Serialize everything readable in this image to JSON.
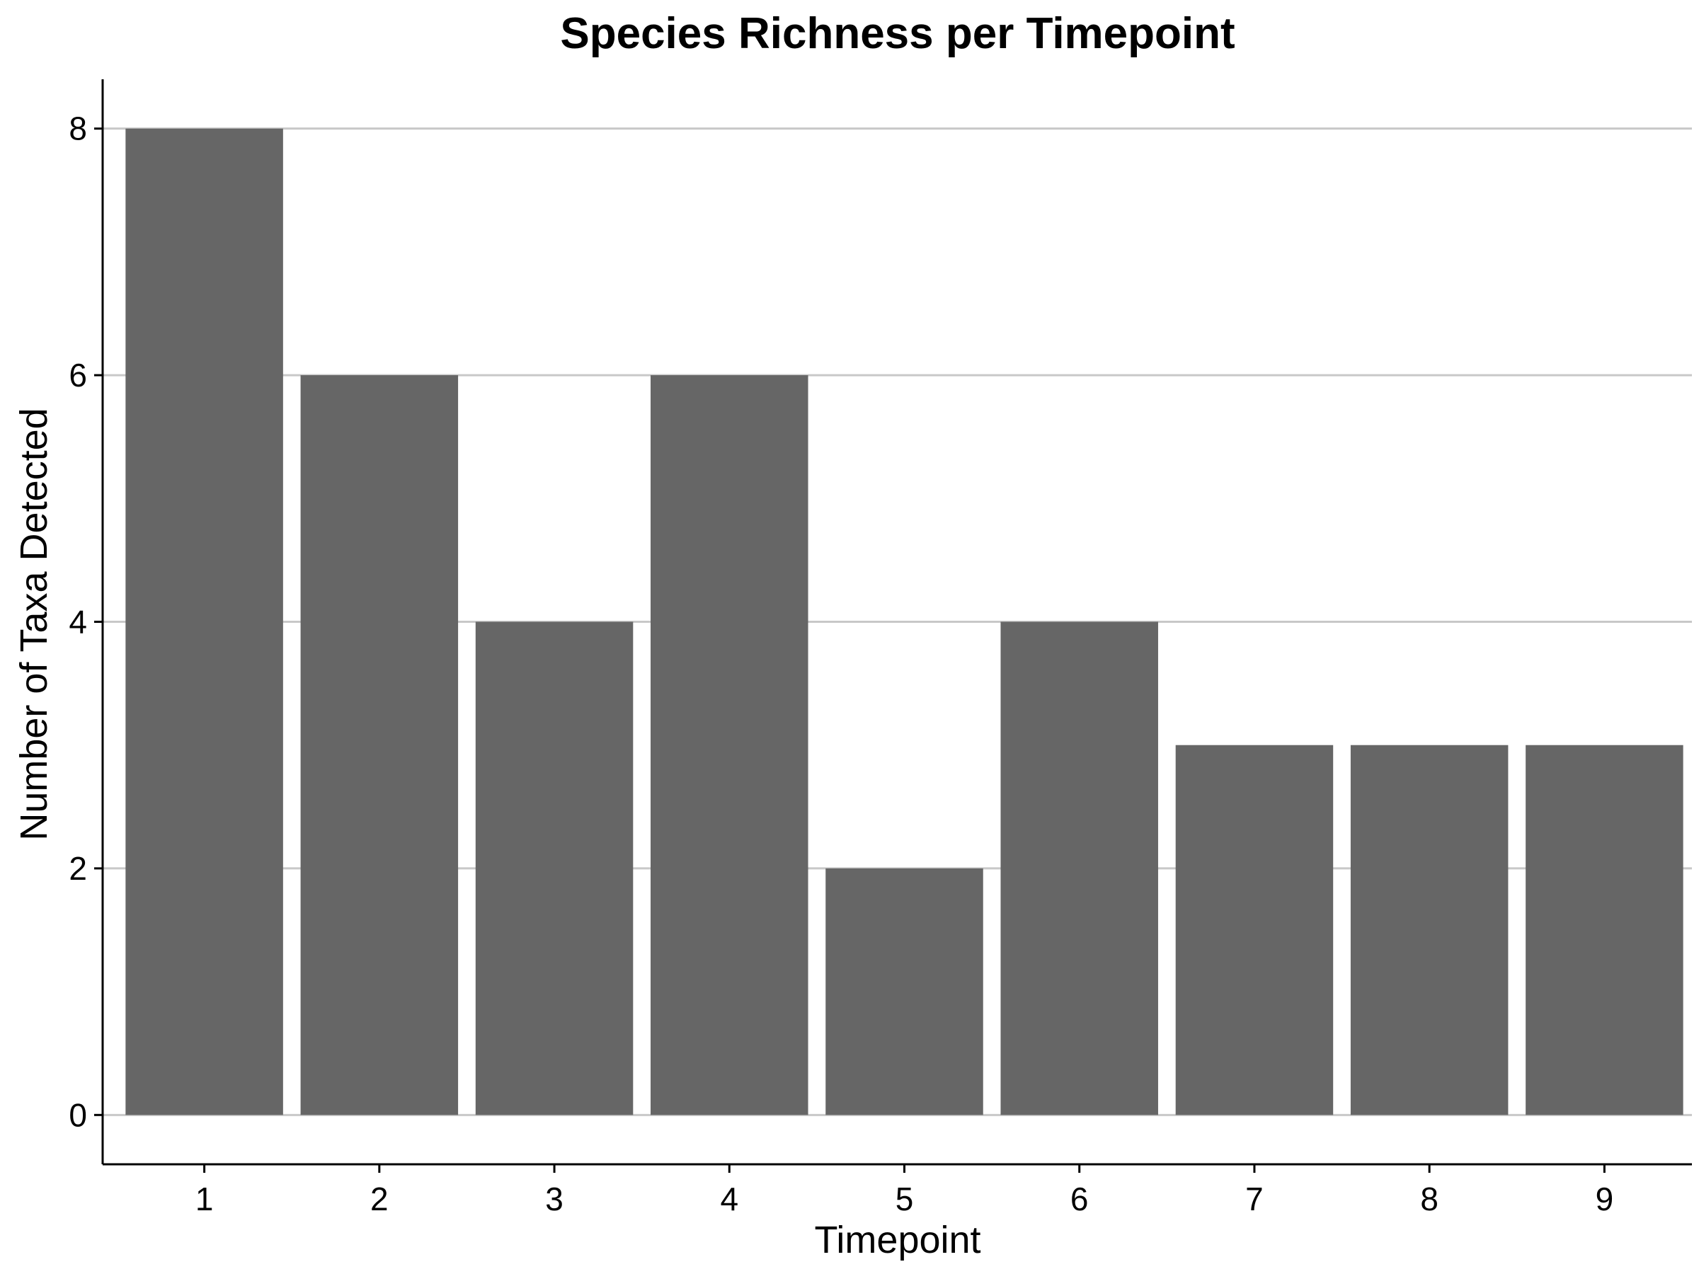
{
  "chart_data": {
    "type": "bar",
    "title": "Species Richness per Timepoint",
    "xlabel": "Timepoint",
    "ylabel": "Number of Taxa Detected",
    "categories": [
      "1",
      "2",
      "3",
      "4",
      "5",
      "6",
      "7",
      "8",
      "9"
    ],
    "values": [
      8,
      6,
      4,
      6,
      2,
      4,
      3,
      3,
      3
    ],
    "ylim": [
      -0.4,
      8.4
    ],
    "yticks": [
      0,
      2,
      4,
      6,
      8
    ],
    "grid": "horizontal",
    "bar_color": "#666666",
    "grid_color": "#c8c8c8"
  }
}
